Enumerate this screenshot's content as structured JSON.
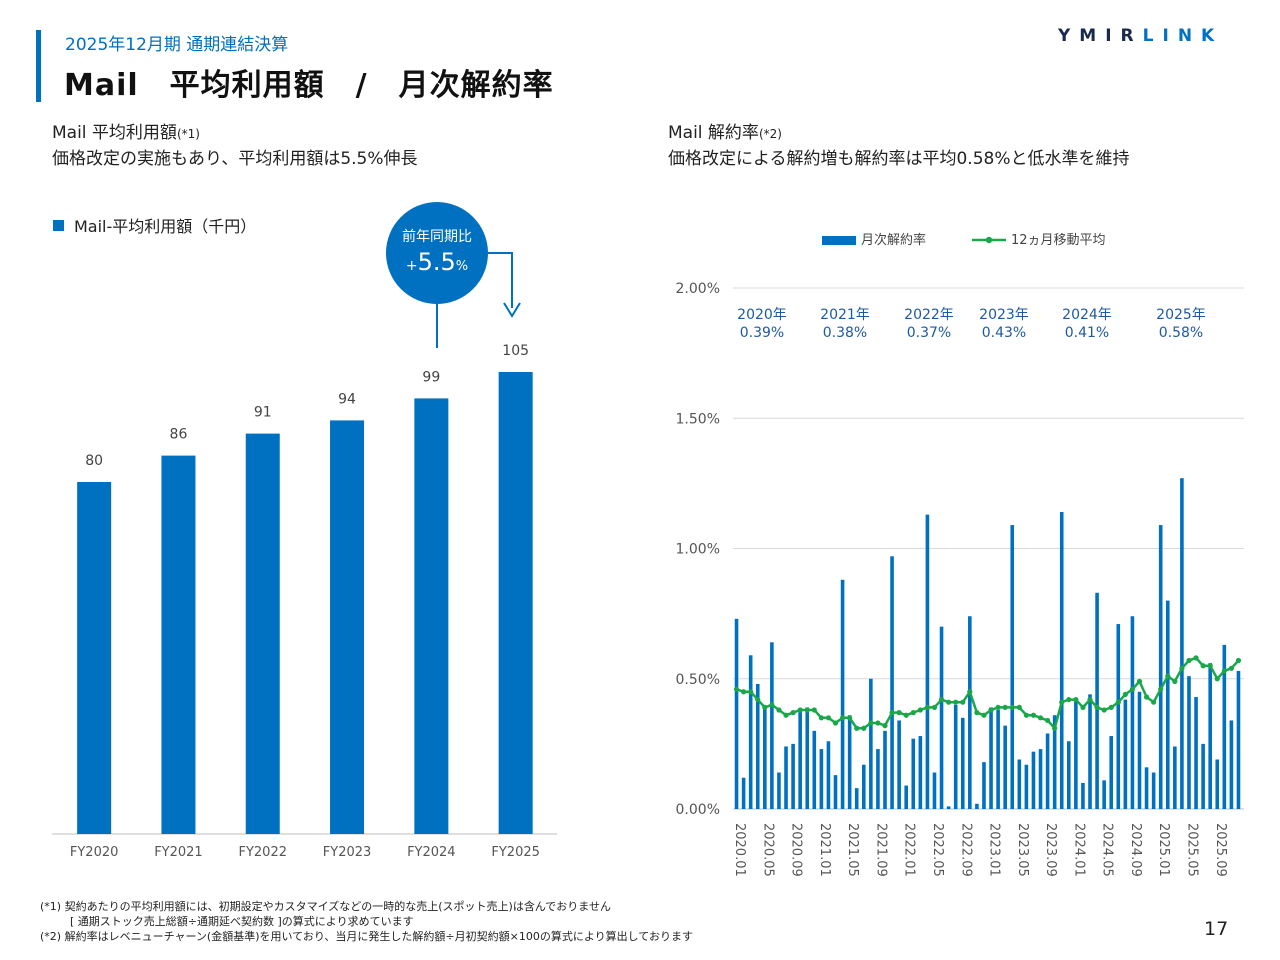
{
  "header": {
    "subtitle": "2025年12月期 通期連結決算",
    "title": "Mail　平均利用額　/　月次解約率",
    "logo_part1": "YMIR",
    "logo_part2": "LINK"
  },
  "left": {
    "heading_main": "Mail 平均利用額",
    "heading_note": "(*1)",
    "heading_sub": "価格改定の実施もあり、平均利用額は5.5%伸長",
    "legend": "Mail-平均利用額（千円）",
    "badge_title": "前年同期比",
    "badge_value_prefix": "+",
    "badge_value": "5.5",
    "badge_value_suffix": "%"
  },
  "right": {
    "heading_main": "Mail 解約率",
    "heading_note": "(*2)",
    "heading_sub": "価格改定による解約増も解約率は平均0.58%と低水準を維持",
    "legend_bar": "月次解約率",
    "legend_line": "12ヵ月移動平均",
    "annual": [
      {
        "year": "2020年",
        "rate": "0.39%"
      },
      {
        "year": "2021年",
        "rate": "0.38%"
      },
      {
        "year": "2022年",
        "rate": "0.37%"
      },
      {
        "year": "2023年",
        "rate": "0.43%"
      },
      {
        "year": "2024年",
        "rate": "0.41%"
      },
      {
        "year": "2025年",
        "rate": "0.58%"
      }
    ]
  },
  "chart_data": [
    {
      "type": "bar",
      "title": "Mail-平均利用額（千円）",
      "categories": [
        "FY2020",
        "FY2021",
        "FY2022",
        "FY2023",
        "FY2024",
        "FY2025"
      ],
      "values": [
        80,
        86,
        91,
        94,
        99,
        105
      ],
      "ylim": [
        0,
        135
      ],
      "colors": {
        "bar": "#0070c0"
      }
    },
    {
      "type": "bar",
      "title": "Mail 解約率",
      "ylabel": "",
      "yticks": [
        "0.00%",
        "0.50%",
        "1.00%",
        "1.50%",
        "2.00%"
      ],
      "ylim": [
        0,
        2.0
      ],
      "x_tick_labels": [
        "2020.01",
        "2020.05",
        "2020.09",
        "2021.01",
        "2021.05",
        "2021.09",
        "2022.01",
        "2022.05",
        "2022.09",
        "2023.01",
        "2023.05",
        "2023.09",
        "2024.01",
        "2024.05",
        "2024.09",
        "2025.01",
        "2025.05",
        "2025.09"
      ],
      "series": [
        {
          "name": "月次解約率",
          "type": "bar",
          "color": "#0070c0",
          "values": [
            0.73,
            0.12,
            0.59,
            0.48,
            0.39,
            0.64,
            0.14,
            0.24,
            0.25,
            0.38,
            0.39,
            0.3,
            0.23,
            0.26,
            0.13,
            0.88,
            0.36,
            0.08,
            0.17,
            0.5,
            0.23,
            0.3,
            0.97,
            0.34,
            0.09,
            0.27,
            0.28,
            1.13,
            0.14,
            0.7,
            0.01,
            0.4,
            0.35,
            0.74,
            0.02,
            0.18,
            0.39,
            0.38,
            0.32,
            1.09,
            0.19,
            0.17,
            0.22,
            0.23,
            0.29,
            0.36,
            1.14,
            0.26,
            0.42,
            0.1,
            0.44,
            0.83,
            0.11,
            0.28,
            0.71,
            0.42,
            0.74,
            0.45,
            0.16,
            0.14,
            1.09,
            0.8,
            0.24,
            1.27,
            0.51,
            0.43,
            0.25,
            0.56,
            0.19,
            0.63,
            0.34,
            0.53
          ]
        },
        {
          "name": "12ヵ月移動平均",
          "type": "line",
          "color": "#1aa74a",
          "values": [
            0.46,
            0.45,
            0.45,
            0.42,
            0.39,
            0.4,
            0.38,
            0.36,
            0.37,
            0.38,
            0.38,
            0.38,
            0.35,
            0.35,
            0.33,
            0.35,
            0.35,
            0.31,
            0.31,
            0.33,
            0.33,
            0.32,
            0.37,
            0.37,
            0.36,
            0.37,
            0.38,
            0.39,
            0.39,
            0.42,
            0.41,
            0.41,
            0.41,
            0.45,
            0.37,
            0.36,
            0.38,
            0.39,
            0.39,
            0.39,
            0.39,
            0.36,
            0.36,
            0.35,
            0.34,
            0.31,
            0.41,
            0.42,
            0.42,
            0.39,
            0.42,
            0.39,
            0.38,
            0.39,
            0.41,
            0.44,
            0.46,
            0.49,
            0.43,
            0.41,
            0.46,
            0.51,
            0.49,
            0.54,
            0.57,
            0.58,
            0.55,
            0.55,
            0.5,
            0.53,
            0.54,
            0.57
          ]
        }
      ],
      "annotations": [
        "2020年 0.39%",
        "2021年 0.38%",
        "2022年 0.37%",
        "2023年 0.43%",
        "2024年 0.41%",
        "2025年 0.58%"
      ]
    }
  ],
  "footnotes": {
    "note1_line1": "(*1) 契約あたりの平均利用額には、初期設定やカスタマイズなどの一時的な売上(スポット売上)は含んでおりません",
    "note1_line2": "[ 通期ストック売上総額÷通期延べ契約数 ]の算式により求めています",
    "note2": "(*2) 解約率はレベニューチャーン(金額基準)を用いており、当月に発生した解約額÷月初契約額×100の算式により算出しております"
  },
  "page_number": "17",
  "colors": {
    "accent": "#0070c0",
    "line": "#1aa74a",
    "grid": "#d9d9d9"
  }
}
